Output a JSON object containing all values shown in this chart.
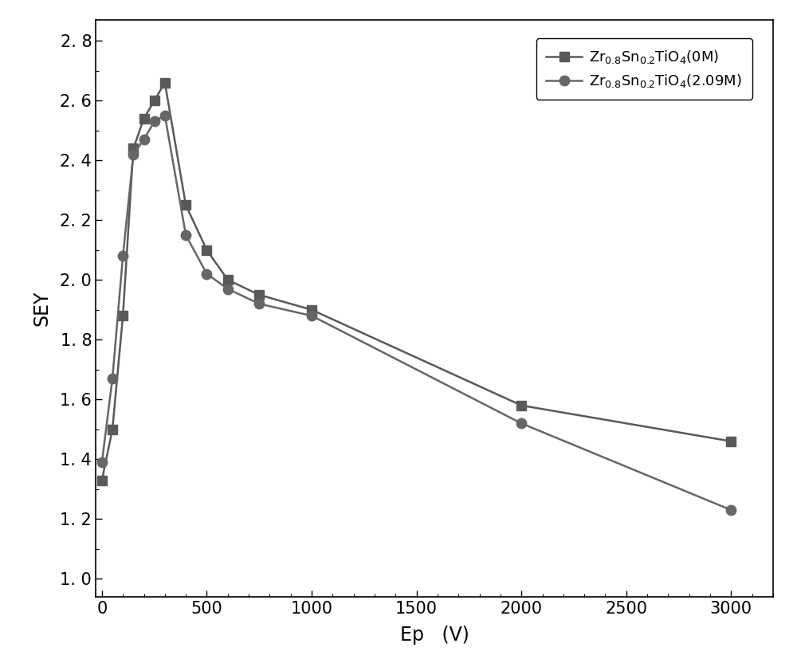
{
  "series1": {
    "x": [
      0,
      50,
      100,
      150,
      200,
      250,
      300,
      400,
      500,
      600,
      750,
      1000,
      2000,
      3000
    ],
    "y": [
      1.33,
      1.5,
      1.88,
      2.44,
      2.54,
      2.6,
      2.66,
      2.25,
      2.1,
      2.0,
      1.95,
      1.9,
      1.58,
      1.46
    ],
    "color": "#595959",
    "marker": "s",
    "markersize": 8,
    "linewidth": 1.8
  },
  "series2": {
    "x": [
      0,
      50,
      100,
      150,
      200,
      250,
      300,
      400,
      500,
      600,
      750,
      1000,
      2000,
      3000
    ],
    "y": [
      1.39,
      1.67,
      2.08,
      2.42,
      2.47,
      2.53,
      2.55,
      2.15,
      2.02,
      1.97,
      1.92,
      1.88,
      1.52,
      1.23
    ],
    "color": "#666666",
    "marker": "o",
    "markersize": 9,
    "linewidth": 1.8
  },
  "xlabel": "Ep   (V)",
  "ylabel": "SEY",
  "xlim": [
    -30,
    3200
  ],
  "ylim": [
    0.94,
    2.87
  ],
  "yticks": [
    1.0,
    1.2,
    1.4,
    1.6,
    1.8,
    2.0,
    2.2,
    2.4,
    2.6,
    2.8
  ],
  "xticks": [
    0,
    500,
    1000,
    1500,
    2000,
    2500,
    3000
  ],
  "tick_label_fontsize": 15,
  "axis_label_fontsize": 17,
  "legend_fontsize": 13,
  "figure_facecolor": "#ffffff"
}
